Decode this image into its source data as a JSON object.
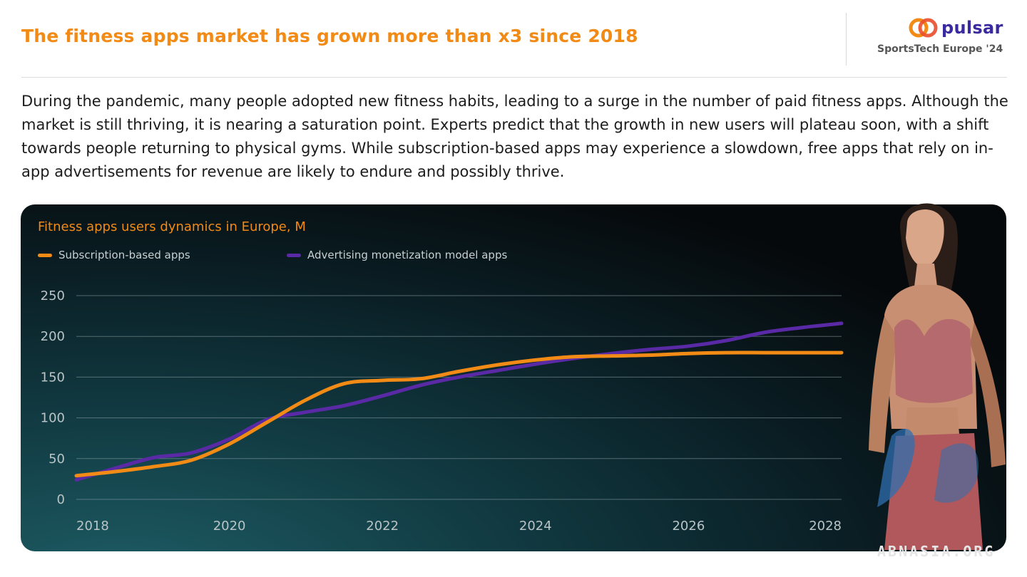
{
  "header": {
    "title": "The fitness apps market has grown more than x3 since 2018",
    "brand": "pulsar",
    "event": "SportsTech Europe '24",
    "icon": "pulsar-logo-icon"
  },
  "intro_text": "During the pandemic, many people adopted new fitness habits, leading to a surge in the number of paid fitness apps. Although the market is still thriving, it is nearing a saturation point. Experts predict that the growth in new users will plateau soon, with a shift towards people returning to physical gyms. While subscription-based apps may experience a slowdown, free apps that rely on in-app advertisements for revenue are likely to endure and possibly thrive.",
  "watermark": "ABNASIA.ORG",
  "colors": {
    "accent": "#f28a16",
    "brand": "#3a2aa0",
    "series_subscription": "#f28a16",
    "series_advertising": "#5a2aa6"
  },
  "chart_data": {
    "type": "line",
    "title": "Fitness apps users dynamics in Europe, M",
    "xlabel": "",
    "ylabel": "",
    "x_ticks": [
      "2018",
      "2020",
      "2022",
      "2024",
      "2026",
      "2028"
    ],
    "y_ticks": [
      "0",
      "50",
      "100",
      "150",
      "200",
      "250"
    ],
    "xlim": [
      2018,
      2028
    ],
    "ylim": [
      0,
      250
    ],
    "grid": true,
    "legend_position": "top-left",
    "series": [
      {
        "name": "Subscription-based apps",
        "color": "#f28a16",
        "x": [
          2018,
          2018.5,
          2019,
          2019.5,
          2020,
          2020.5,
          2021,
          2021.5,
          2022,
          2022.5,
          2023,
          2023.5,
          2024,
          2024.5,
          2025,
          2025.5,
          2026,
          2026.5,
          2027,
          2027.5,
          2028
        ],
        "values": [
          29,
          34,
          40,
          48,
          68,
          95,
          122,
          142,
          146,
          148,
          157,
          165,
          171,
          175,
          176,
          177,
          179,
          180,
          180,
          180,
          180
        ]
      },
      {
        "name": "Advertising monetization model apps",
        "color": "#5a2aa6",
        "x": [
          2018,
          2018.5,
          2019,
          2019.5,
          2020,
          2020.5,
          2021,
          2021.5,
          2022,
          2022.5,
          2023,
          2023.5,
          2024,
          2024.5,
          2025,
          2025.5,
          2026,
          2026.5,
          2027,
          2027.5,
          2028
        ],
        "values": [
          24,
          38,
          51,
          57,
          74,
          98,
          107,
          115,
          127,
          140,
          150,
          158,
          166,
          173,
          179,
          184,
          188,
          195,
          205,
          211,
          216
        ]
      }
    ]
  }
}
